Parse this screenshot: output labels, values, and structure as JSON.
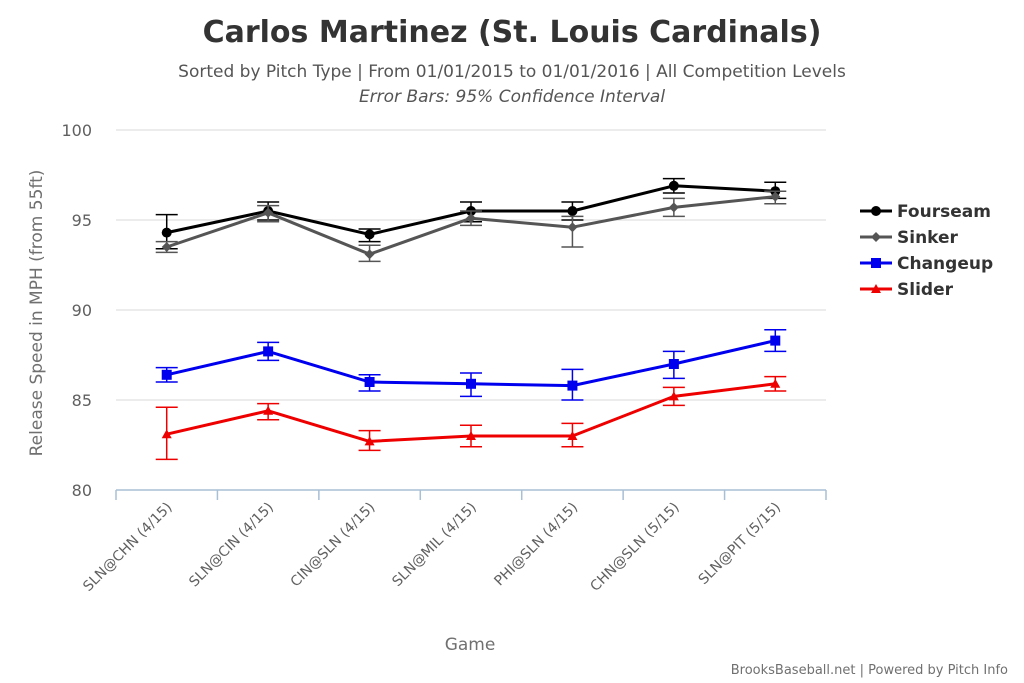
{
  "chart_data": {
    "type": "line",
    "title": "Carlos Martinez (St. Louis Cardinals)",
    "subtitle": "Sorted by Pitch Type | From 01/01/2015 to 01/01/2016 | All Competition Levels",
    "note": "Error Bars: 95% Confidence Interval",
    "xlabel": "Game",
    "ylabel": "Release Speed in MPH (from 55ft)",
    "ylim": [
      80,
      100
    ],
    "yticks": [
      "80",
      "85",
      "90",
      "95",
      "100"
    ],
    "categories": [
      "SLN@CHN (4/15)",
      "SLN@CIN (4/15)",
      "CIN@SLN (4/15)",
      "SLN@MIL (4/15)",
      "PHI@SLN (4/15)",
      "CHN@SLN (5/15)",
      "SLN@PIT (5/15)"
    ],
    "legend_position": "right",
    "grid": true,
    "series": [
      {
        "name": "Fourseam",
        "color": "#000000",
        "marker": "circle",
        "values": [
          94.3,
          95.5,
          94.2,
          95.5,
          95.5,
          96.9,
          96.6
        ],
        "error_low": [
          93.4,
          95.0,
          93.8,
          94.9,
          95.0,
          96.5,
          96.2
        ],
        "error_high": [
          95.3,
          96.0,
          94.5,
          96.0,
          96.0,
          97.3,
          97.1
        ]
      },
      {
        "name": "Sinker",
        "color": "#555555",
        "marker": "diamond",
        "values": [
          93.5,
          95.4,
          93.1,
          95.1,
          94.6,
          95.7,
          96.3
        ],
        "error_low": [
          93.2,
          94.9,
          92.7,
          94.7,
          93.5,
          95.2,
          95.9
        ],
        "error_high": [
          93.8,
          95.8,
          93.6,
          95.5,
          95.2,
          96.2,
          96.6
        ]
      },
      {
        "name": "Changeup",
        "color": "#0000ee",
        "marker": "square",
        "values": [
          86.4,
          87.7,
          86.0,
          85.9,
          85.8,
          87.0,
          88.3
        ],
        "error_low": [
          86.0,
          87.2,
          85.5,
          85.2,
          85.0,
          86.2,
          87.7
        ],
        "error_high": [
          86.8,
          88.2,
          86.4,
          86.5,
          86.7,
          87.7,
          88.9
        ]
      },
      {
        "name": "Slider",
        "color": "#ee0000",
        "marker": "triangle",
        "values": [
          83.1,
          84.4,
          82.7,
          83.0,
          83.0,
          85.2,
          85.9
        ],
        "error_low": [
          81.7,
          83.9,
          82.2,
          82.4,
          82.4,
          84.7,
          85.5
        ],
        "error_high": [
          84.6,
          84.8,
          83.3,
          83.6,
          83.7,
          85.7,
          86.3
        ]
      }
    ]
  },
  "credit": "BrooksBaseball.net | Powered by Pitch Info"
}
